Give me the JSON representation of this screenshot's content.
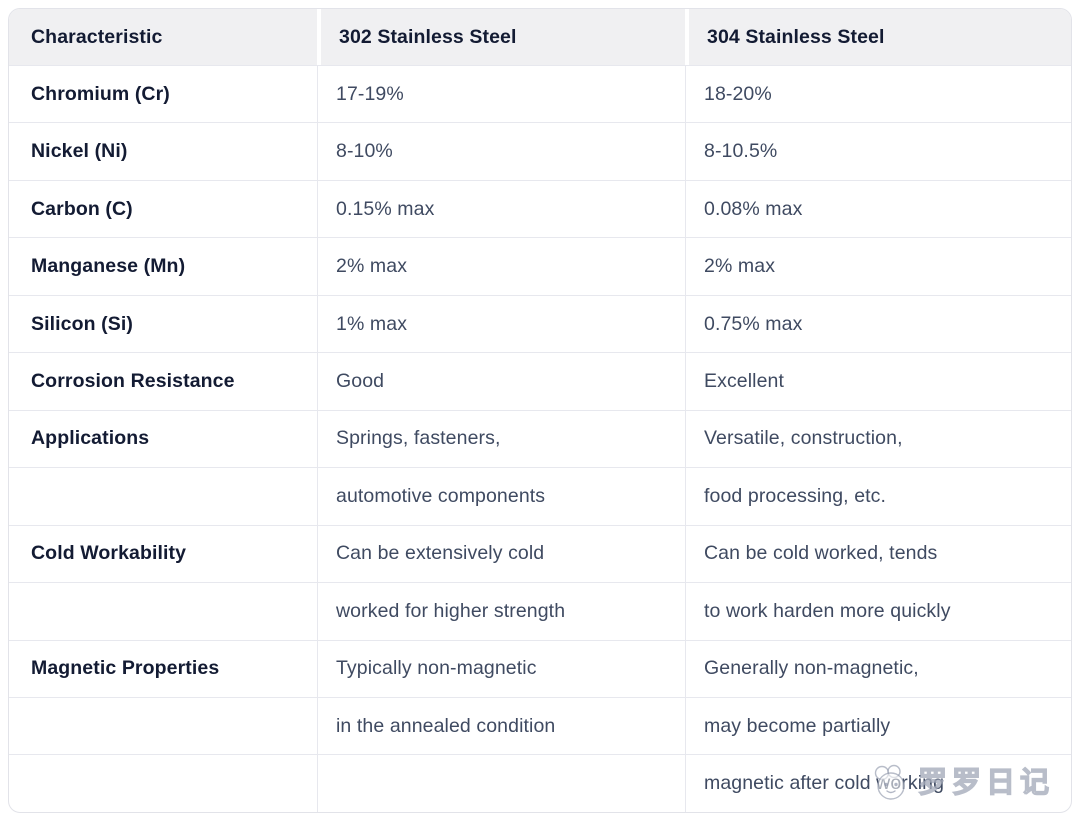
{
  "table": {
    "columns": [
      "Characteristic",
      "302 Stainless Steel",
      "304 Stainless Steel"
    ],
    "rows": [
      [
        "Chromium (Cr)",
        "17-19%",
        "18-20%"
      ],
      [
        "Nickel (Ni)",
        "8-10%",
        "8-10.5%"
      ],
      [
        "Carbon (C)",
        "0.15% max",
        "0.08% max"
      ],
      [
        "Manganese (Mn)",
        "2% max",
        "2% max"
      ],
      [
        "Silicon (Si)",
        "1% max",
        "0.75% max"
      ],
      [
        "Corrosion Resistance",
        "Good",
        "Excellent"
      ],
      [
        "Applications",
        "Springs, fasteners,",
        "Versatile, construction,"
      ],
      [
        "",
        "automotive components",
        "food processing, etc."
      ],
      [
        "Cold Workability",
        "Can be extensively cold",
        "Can be cold worked, tends"
      ],
      [
        "",
        "worked for higher strength",
        "to work harden more quickly"
      ],
      [
        "Magnetic Properties",
        "Typically non-magnetic",
        "Generally non-magnetic,"
      ],
      [
        "",
        "in the annealed condition",
        "may become partially"
      ],
      [
        "",
        "",
        "magnetic after cold working"
      ]
    ]
  },
  "watermark": {
    "text": "罗罗日记",
    "icon": "sheep-face-icon"
  },
  "colors": {
    "header_bg": "#f0f0f2",
    "border": "#e2e3e9",
    "divider": "#e7e8ee",
    "label_text": "#131b33",
    "value_text": "#3f4a61",
    "background": "#ffffff"
  }
}
